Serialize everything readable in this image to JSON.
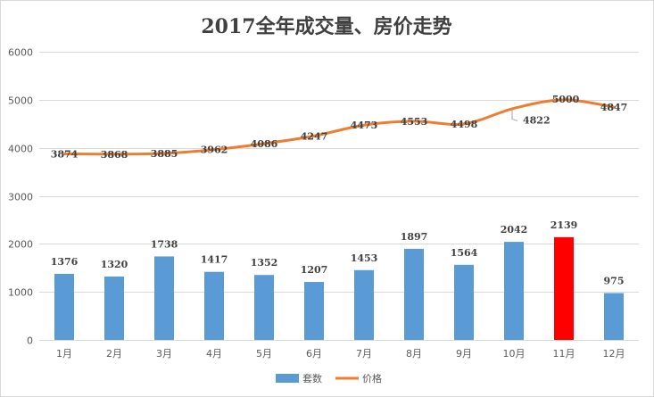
{
  "chart_data": {
    "type": "bar+line",
    "title": "2017全年成交量、房价走势",
    "categories": [
      "1月",
      "2月",
      "3月",
      "4月",
      "5月",
      "6月",
      "7月",
      "8月",
      "9月",
      "10月",
      "11月",
      "12月"
    ],
    "ylim": [
      0,
      6000
    ],
    "yticks": [
      "0",
      "1000",
      "2000",
      "3000",
      "4000",
      "5000",
      "6000"
    ],
    "grid": true,
    "legend_position": "bottom",
    "series": [
      {
        "name": "套数",
        "type": "bar",
        "color": "#5b9bd5",
        "highlight": {
          "index": 10,
          "color": "#ff0000"
        },
        "values": [
          1376,
          1320,
          1738,
          1417,
          1352,
          1207,
          1453,
          1897,
          1564,
          2042,
          2139,
          975
        ],
        "labels": [
          "1376",
          "1320",
          "1738",
          "1417",
          "1352",
          "1207",
          "1453",
          "1897",
          "1564",
          "2042",
          "2139",
          "975"
        ]
      },
      {
        "name": "价格",
        "type": "line",
        "color": "#ed7d31",
        "highlight": {
          "index": 9,
          "color": "#ff0000"
        },
        "values": [
          3874,
          3868,
          3885,
          3962,
          4086,
          4247,
          4473,
          4553,
          4498,
          4822,
          5000,
          4847
        ],
        "labels": [
          "3874",
          "3868",
          "3885",
          "3962",
          "4086",
          "4247",
          "4473",
          "4553",
          "4498",
          "4822",
          "5000",
          "4847"
        ]
      }
    ]
  }
}
